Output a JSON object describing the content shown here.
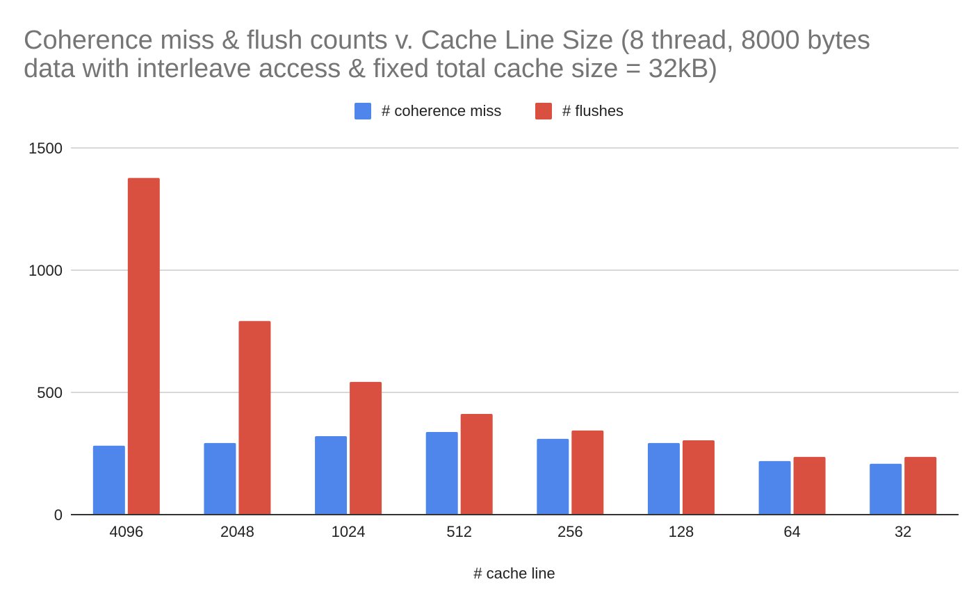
{
  "chart_data": {
    "type": "bar",
    "title_lines": [
      "Coherence miss & flush counts v. Cache Line Size (8 thread, 8000 bytes",
      "data with interleave access & fixed total cache size = 32kB)"
    ],
    "xlabel": "# cache line",
    "ylabel": "",
    "categories": [
      "4096",
      "2048",
      "1024",
      "512",
      "256",
      "128",
      "64",
      "32"
    ],
    "series": [
      {
        "name": "# coherence miss",
        "color": "#4f86ec",
        "values": [
          282,
          293,
          321,
          338,
          310,
          293,
          219,
          208
        ]
      },
      {
        "name": "# flushes",
        "color": "#d95040",
        "values": [
          1377,
          792,
          543,
          412,
          344,
          304,
          236,
          236
        ]
      }
    ],
    "ylim": [
      0,
      1500
    ],
    "yticks": [
      {
        "value": 0,
        "label": "0"
      },
      {
        "value": 500,
        "label": "500"
      },
      {
        "value": 1000,
        "label": "1000"
      },
      {
        "value": 1500,
        "label": "1500"
      }
    ],
    "grid": true,
    "legend_position": "top"
  }
}
